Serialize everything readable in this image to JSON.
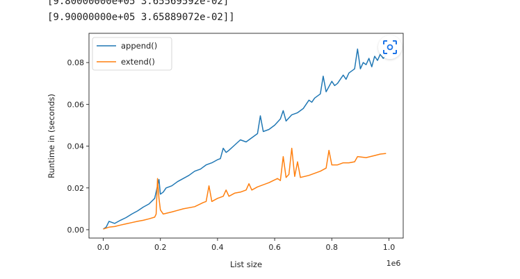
{
  "console": {
    "lines": [
      "[9.80000000e+05 3.65569592e-02]",
      "[9.90000000e+05 3.65889072e-02]]"
    ]
  },
  "lens_icon": "visual-search-icon",
  "chart_data": {
    "type": "line",
    "xlabel": "List size",
    "ylabel": "Runtime in (seconds)",
    "x_offset_label": "1e6",
    "xlim": [
      -0.05,
      1.05
    ],
    "ylim": [
      -0.004,
      0.094
    ],
    "x_ticks": [
      0.0,
      0.2,
      0.4,
      0.6,
      0.8,
      1.0
    ],
    "x_tick_labels": [
      "0.0",
      "0.2",
      "0.4",
      "0.6",
      "0.8",
      "1.0"
    ],
    "y_ticks": [
      0.0,
      0.02,
      0.04,
      0.06,
      0.08
    ],
    "y_tick_labels": [
      "0.00",
      "0.02",
      "0.04",
      "0.06",
      "0.08"
    ],
    "legend_position": "top-left",
    "grid": false,
    "series": [
      {
        "name": "append()",
        "color": "#1f77b4",
        "points": [
          [
            0.0,
            0.0003
          ],
          [
            0.01,
            0.0012
          ],
          [
            0.02,
            0.004
          ],
          [
            0.03,
            0.0035
          ],
          [
            0.04,
            0.003
          ],
          [
            0.06,
            0.0045
          ],
          [
            0.08,
            0.0058
          ],
          [
            0.1,
            0.0075
          ],
          [
            0.12,
            0.009
          ],
          [
            0.14,
            0.0108
          ],
          [
            0.16,
            0.0123
          ],
          [
            0.18,
            0.015
          ],
          [
            0.19,
            0.021
          ],
          [
            0.195,
            0.024
          ],
          [
            0.2,
            0.017
          ],
          [
            0.21,
            0.018
          ],
          [
            0.22,
            0.02
          ],
          [
            0.24,
            0.021
          ],
          [
            0.26,
            0.023
          ],
          [
            0.28,
            0.0245
          ],
          [
            0.3,
            0.026
          ],
          [
            0.32,
            0.028
          ],
          [
            0.34,
            0.029
          ],
          [
            0.36,
            0.031
          ],
          [
            0.38,
            0.032
          ],
          [
            0.4,
            0.0335
          ],
          [
            0.41,
            0.034
          ],
          [
            0.42,
            0.039
          ],
          [
            0.43,
            0.037
          ],
          [
            0.44,
            0.038
          ],
          [
            0.46,
            0.0405
          ],
          [
            0.48,
            0.043
          ],
          [
            0.5,
            0.042
          ],
          [
            0.52,
            0.044
          ],
          [
            0.54,
            0.046
          ],
          [
            0.55,
            0.0545
          ],
          [
            0.56,
            0.047
          ],
          [
            0.58,
            0.048
          ],
          [
            0.6,
            0.05
          ],
          [
            0.62,
            0.053
          ],
          [
            0.63,
            0.057
          ],
          [
            0.64,
            0.052
          ],
          [
            0.66,
            0.055
          ],
          [
            0.68,
            0.056
          ],
          [
            0.7,
            0.058
          ],
          [
            0.72,
            0.062
          ],
          [
            0.73,
            0.061
          ],
          [
            0.74,
            0.063
          ],
          [
            0.76,
            0.065
          ],
          [
            0.77,
            0.0735
          ],
          [
            0.78,
            0.066
          ],
          [
            0.8,
            0.071
          ],
          [
            0.81,
            0.069
          ],
          [
            0.82,
            0.07
          ],
          [
            0.84,
            0.074
          ],
          [
            0.85,
            0.072
          ],
          [
            0.86,
            0.075
          ],
          [
            0.88,
            0.077
          ],
          [
            0.89,
            0.0865
          ],
          [
            0.9,
            0.077
          ],
          [
            0.91,
            0.08
          ],
          [
            0.92,
            0.079
          ],
          [
            0.93,
            0.082
          ],
          [
            0.94,
            0.078
          ],
          [
            0.95,
            0.083
          ],
          [
            0.96,
            0.081
          ],
          [
            0.97,
            0.084
          ],
          [
            0.98,
            0.082
          ],
          [
            0.99,
            0.0835
          ]
        ]
      },
      {
        "name": "extend()",
        "color": "#ff7f0e",
        "points": [
          [
            0.0,
            0.0003
          ],
          [
            0.02,
            0.0012
          ],
          [
            0.04,
            0.0015
          ],
          [
            0.06,
            0.0022
          ],
          [
            0.08,
            0.0028
          ],
          [
            0.1,
            0.0034
          ],
          [
            0.12,
            0.004
          ],
          [
            0.14,
            0.0045
          ],
          [
            0.16,
            0.0052
          ],
          [
            0.18,
            0.006
          ],
          [
            0.185,
            0.0075
          ],
          [
            0.19,
            0.0245
          ],
          [
            0.195,
            0.015
          ],
          [
            0.2,
            0.0095
          ],
          [
            0.21,
            0.0075
          ],
          [
            0.24,
            0.0085
          ],
          [
            0.28,
            0.01
          ],
          [
            0.32,
            0.011
          ],
          [
            0.35,
            0.013
          ],
          [
            0.36,
            0.0135
          ],
          [
            0.37,
            0.021
          ],
          [
            0.38,
            0.0135
          ],
          [
            0.4,
            0.015
          ],
          [
            0.42,
            0.016
          ],
          [
            0.43,
            0.019
          ],
          [
            0.44,
            0.016
          ],
          [
            0.46,
            0.0175
          ],
          [
            0.48,
            0.018
          ],
          [
            0.5,
            0.019
          ],
          [
            0.51,
            0.022
          ],
          [
            0.52,
            0.019
          ],
          [
            0.54,
            0.0205
          ],
          [
            0.58,
            0.0225
          ],
          [
            0.61,
            0.0245
          ],
          [
            0.62,
            0.0235
          ],
          [
            0.63,
            0.035
          ],
          [
            0.64,
            0.025
          ],
          [
            0.65,
            0.0265
          ],
          [
            0.66,
            0.039
          ],
          [
            0.67,
            0.0255
          ],
          [
            0.68,
            0.0325
          ],
          [
            0.69,
            0.025
          ],
          [
            0.72,
            0.026
          ],
          [
            0.74,
            0.027
          ],
          [
            0.76,
            0.028
          ],
          [
            0.78,
            0.0295
          ],
          [
            0.79,
            0.038
          ],
          [
            0.8,
            0.031
          ],
          [
            0.82,
            0.031
          ],
          [
            0.84,
            0.032
          ],
          [
            0.86,
            0.032
          ],
          [
            0.88,
            0.0325
          ],
          [
            0.89,
            0.035
          ],
          [
            0.92,
            0.0345
          ],
          [
            0.95,
            0.0355
          ],
          [
            0.97,
            0.0362
          ],
          [
            0.99,
            0.0365
          ]
        ]
      }
    ]
  }
}
